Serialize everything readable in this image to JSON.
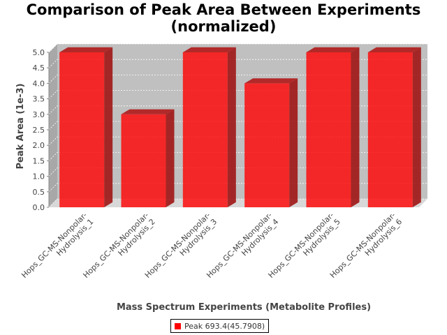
{
  "chart_data": {
    "type": "bar",
    "title": [
      "Comparison of Peak Area Between Experiments",
      "(normalized)"
    ],
    "xlabel": "Mass Spectrum Experiments (Metabolite Profiles)",
    "ylabel": "Peak Area (1e-3)",
    "ylim": [
      0,
      5.0
    ],
    "yticks": [
      "0.0",
      "0.5",
      "1.0",
      "1.5",
      "2.0",
      "2.5",
      "3.0",
      "3.5",
      "4.0",
      "4.5",
      "5.0"
    ],
    "grid": true,
    "legend_position": "bottom",
    "categories": [
      [
        "Hops_GC-MS-Nonpolar-",
        "Hydrolysis_1"
      ],
      [
        "Hops_GC-MS-Nonpolar-",
        "Hydrolysis_2"
      ],
      [
        "Hops_GC-MS-Nonpolar-",
        "Hydrolysis_3"
      ],
      [
        "Hops_GC-MS-Nonpolar-",
        "Hydrolysis_4"
      ],
      [
        "Hops_GC-MS-Nonpolar-",
        "Hydrolysis_5"
      ],
      [
        "Hops_GC-MS-Nonpolar-",
        "Hydrolysis_6"
      ]
    ],
    "series": [
      {
        "name": "Peak 693.4(45.7908)",
        "values": [
          5.0,
          3.0,
          5.0,
          4.0,
          5.0,
          5.0
        ],
        "color": "#ff0000"
      }
    ]
  },
  "colors": {
    "plot_background": "#c0c0c0",
    "bar": "#ff0000"
  }
}
